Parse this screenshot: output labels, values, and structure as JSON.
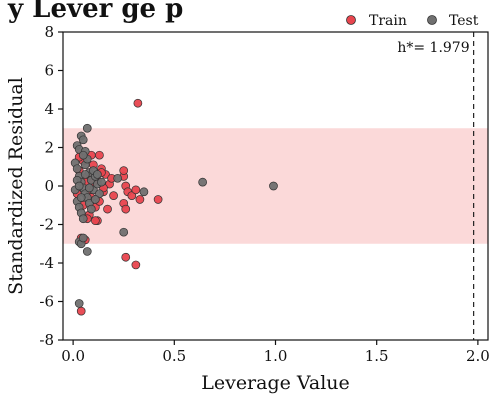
{
  "header_fragment": "y Lever   ge   p",
  "chart_data": {
    "type": "scatter",
    "title": "",
    "xlabel": "Leverage Value",
    "ylabel": "Standardized Residual",
    "xlim": [
      -0.05,
      2.05
    ],
    "ylim": [
      -8,
      8
    ],
    "xticks": [
      0.0,
      0.5,
      1.0,
      1.5,
      2.0
    ],
    "xtick_labels": [
      "0.0",
      "0.5",
      "1.0",
      "1.5",
      "2.0"
    ],
    "yticks": [
      -8,
      -6,
      -4,
      -2,
      0,
      2,
      4,
      6,
      8
    ],
    "ytick_labels": [
      "-8",
      "-6",
      "-4",
      "-2",
      "0",
      "2",
      "4",
      "6",
      "8"
    ],
    "grid": false,
    "legend_position": "top-right",
    "band": {
      "y_min": -3,
      "y_max": 3,
      "color": "#fbd9d9"
    },
    "threshold": {
      "x": 1.979,
      "label": "h*= 1.979",
      "style": "dashed"
    },
    "colors": {
      "train": "#e8454e",
      "test": "#707070",
      "edge": "#333333"
    },
    "series": [
      {
        "name": "Train",
        "color": "#e8454e",
        "points": [
          [
            0.32,
            4.3
          ],
          [
            0.03,
            0.8
          ],
          [
            0.05,
            1.3
          ],
          [
            0.07,
            0.5
          ],
          [
            0.08,
            -0.2
          ],
          [
            0.09,
            -0.6
          ],
          [
            0.1,
            1.1
          ],
          [
            0.11,
            -1.1
          ],
          [
            0.12,
            0.3
          ],
          [
            0.13,
            -0.8
          ],
          [
            0.14,
            0.9
          ],
          [
            0.15,
            -0.3
          ],
          [
            0.16,
            0.6
          ],
          [
            0.17,
            -1.2
          ],
          [
            0.18,
            0.1
          ],
          [
            0.19,
            0.4
          ],
          [
            0.2,
            -0.5
          ],
          [
            0.25,
            0.5
          ],
          [
            0.25,
            0.8
          ],
          [
            0.25,
            -0.9
          ],
          [
            0.26,
            -1.2
          ],
          [
            0.26,
            0.0
          ],
          [
            0.27,
            -0.3
          ],
          [
            0.29,
            -0.5
          ],
          [
            0.31,
            -0.2
          ],
          [
            0.33,
            -0.7
          ],
          [
            0.42,
            -0.7
          ],
          [
            0.26,
            -3.7
          ],
          [
            0.31,
            -4.1
          ],
          [
            0.04,
            -6.5
          ],
          [
            0.06,
            -2.8
          ],
          [
            0.04,
            -2.7
          ],
          [
            0.08,
            -1.5
          ],
          [
            0.12,
            -1.8
          ],
          [
            0.1,
            0.2
          ],
          [
            0.09,
            1.6
          ],
          [
            0.05,
            -1.0
          ],
          [
            0.02,
            -0.4
          ],
          [
            0.06,
            0.2
          ],
          [
            0.14,
            0.7
          ],
          [
            0.11,
            -1.8
          ],
          [
            0.03,
            1.5
          ],
          [
            0.07,
            -1.7
          ],
          [
            0.15,
            -0.1
          ],
          [
            0.13,
            1.6
          ]
        ]
      },
      {
        "name": "Test",
        "color": "#707070",
        "points": [
          [
            0.07,
            3.0
          ],
          [
            0.04,
            2.6
          ],
          [
            0.05,
            2.4
          ],
          [
            0.02,
            2.1
          ],
          [
            0.03,
            1.9
          ],
          [
            0.06,
            1.8
          ],
          [
            0.01,
            1.2
          ],
          [
            0.02,
            0.9
          ],
          [
            0.03,
            0.5
          ],
          [
            0.04,
            0.2
          ],
          [
            0.05,
            -0.1
          ],
          [
            0.06,
            -0.4
          ],
          [
            0.07,
            -0.6
          ],
          [
            0.02,
            -0.8
          ],
          [
            0.03,
            -1.1
          ],
          [
            0.04,
            -1.4
          ],
          [
            0.05,
            -1.7
          ],
          [
            0.08,
            0.7
          ],
          [
            0.09,
            0.3
          ],
          [
            0.1,
            -0.2
          ],
          [
            0.11,
            0.5
          ],
          [
            0.12,
            0.1
          ],
          [
            0.13,
            -0.4
          ],
          [
            0.14,
            0.2
          ],
          [
            0.08,
            -0.9
          ],
          [
            0.09,
            -1.2
          ],
          [
            0.06,
            1.1
          ],
          [
            0.07,
            1.4
          ],
          [
            0.03,
            -2.9
          ],
          [
            0.04,
            -3.0
          ],
          [
            0.07,
            -3.4
          ],
          [
            0.05,
            -2.7
          ],
          [
            0.25,
            -2.4
          ],
          [
            0.35,
            -0.3
          ],
          [
            0.22,
            0.4
          ],
          [
            0.64,
            0.2
          ],
          [
            0.99,
            0.0
          ],
          [
            0.03,
            -6.1
          ],
          [
            0.06,
            0.6
          ],
          [
            0.01,
            -0.2
          ],
          [
            0.02,
            0.3
          ],
          [
            0.1,
            0.8
          ],
          [
            0.11,
            -0.7
          ],
          [
            0.12,
            0.6
          ],
          [
            0.05,
            1.6
          ],
          [
            0.08,
            -0.1
          ],
          [
            0.03,
            0.0
          ],
          [
            0.04,
            -0.6
          ]
        ]
      }
    ]
  }
}
